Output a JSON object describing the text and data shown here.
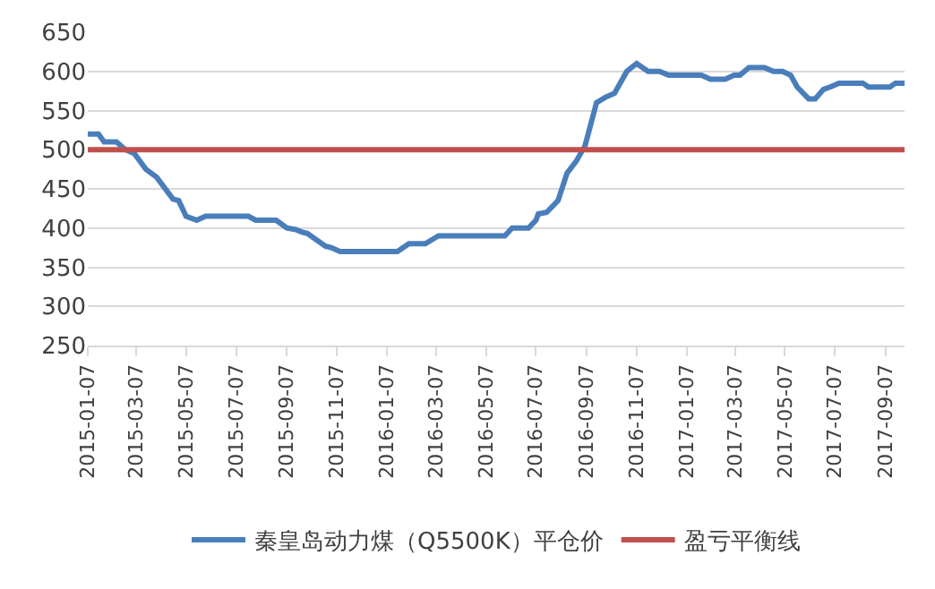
{
  "chart_data": {
    "type": "line",
    "xlim": [
      "2015-01-07",
      "2017-09-30"
    ],
    "xticks": [
      "2015-01-07",
      "2015-03-07",
      "2015-05-07",
      "2015-07-07",
      "2015-09-07",
      "2015-11-07",
      "2016-01-07",
      "2016-03-07",
      "2016-05-07",
      "2016-07-07",
      "2016-09-07",
      "2016-11-07",
      "2017-01-07",
      "2017-03-07",
      "2017-05-07",
      "2017-07-07",
      "2017-09-07"
    ],
    "ylim": [
      250,
      650
    ],
    "yticks": [
      250,
      300,
      350,
      400,
      450,
      500,
      550,
      600,
      650
    ],
    "grid": "y",
    "legend": "bottom",
    "marker": "none",
    "line_style": "solid",
    "series": [
      {
        "name": "秦皇岛动力煤（Q5500K）平仓价",
        "color": "#4a7ebb",
        "x": [
          "2015-01-07",
          "2015-01-20",
          "2015-01-27",
          "2015-02-11",
          "2015-02-22",
          "2015-03-05",
          "2015-03-19",
          "2015-04-01",
          "2015-04-21",
          "2015-04-28",
          "2015-05-07",
          "2015-05-20",
          "2015-05-31",
          "2015-07-22",
          "2015-07-31",
          "2015-08-25",
          "2015-09-07",
          "2015-09-18",
          "2015-09-25",
          "2015-10-02",
          "2015-10-24",
          "2015-10-31",
          "2015-11-11",
          "2016-01-20",
          "2016-02-03",
          "2016-02-23",
          "2016-03-10",
          "2016-05-04",
          "2016-05-30",
          "2016-06-08",
          "2016-06-28",
          "2016-07-07",
          "2016-07-10",
          "2016-07-20",
          "2016-08-03",
          "2016-08-14",
          "2016-08-25",
          "2016-09-05",
          "2016-09-19",
          "2016-09-30",
          "2016-10-11",
          "2016-10-26",
          "2016-11-07",
          "2016-11-21",
          "2016-12-05",
          "2016-12-16",
          "2017-01-25",
          "2017-02-05",
          "2017-02-23",
          "2017-03-06",
          "2017-03-13",
          "2017-03-24",
          "2017-04-12",
          "2017-04-23",
          "2017-05-04",
          "2017-05-14",
          "2017-05-22",
          "2017-06-05",
          "2017-06-13",
          "2017-06-23",
          "2017-07-01",
          "2017-07-12",
          "2017-08-10",
          "2017-08-17",
          "2017-09-12",
          "2017-09-19",
          "2017-09-30"
        ],
        "values": [
          520,
          520,
          510,
          510,
          500,
          495,
          475,
          465,
          437,
          435,
          415,
          410,
          415,
          415,
          410,
          410,
          400,
          398,
          395,
          393,
          377,
          375,
          370,
          370,
          380,
          380,
          390,
          390,
          390,
          400,
          400,
          410,
          418,
          420,
          435,
          470,
          485,
          505,
          560,
          567,
          572,
          600,
          610,
          600,
          600,
          595,
          595,
          590,
          590,
          595,
          595,
          605,
          605,
          600,
          600,
          595,
          580,
          565,
          565,
          577,
          580,
          585,
          585,
          580,
          580,
          585,
          585
        ]
      },
      {
        "name": "盈亏平衡线",
        "color": "#c0504d",
        "x": [
          "2015-01-07",
          "2017-09-30"
        ],
        "values": [
          500,
          500
        ]
      }
    ]
  }
}
